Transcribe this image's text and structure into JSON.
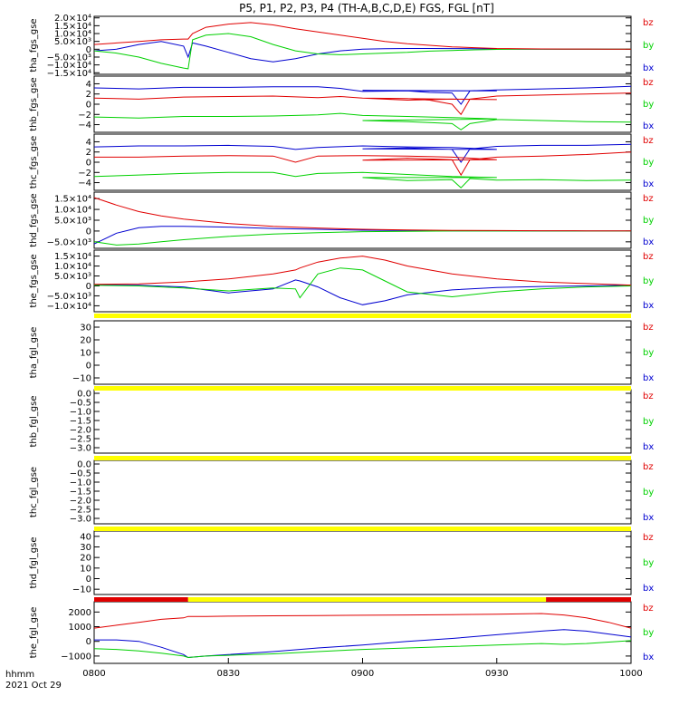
{
  "title": "P5, P1, P2, P3, P4 (TH-A,B,C,D,E) FGS, FGL [nT]",
  "footer": {
    "time_label": "hhmm",
    "date_label": "2021 Oct 29"
  },
  "colors": {
    "bz": "#e00000",
    "by": "#00d000",
    "bx": "#0000d0",
    "flag_yellow": "#ffff00",
    "flag_red": "#e00000"
  },
  "chart_data": [
    {
      "type": "line",
      "ylabel": "tha_fgs_gse",
      "yticks": [
        "2.0×10⁴",
        "1.5×10⁴",
        "1.0×10⁴",
        "5.0×10³",
        "0",
        "−5.0×10³",
        "−1.0×10⁴",
        "−1.5×10⁴"
      ],
      "ylim": [
        -16000,
        21000
      ],
      "legend": [
        "bz",
        "by",
        "bx"
      ],
      "x": [
        800,
        805,
        810,
        815,
        820,
        821,
        822,
        825,
        830,
        835,
        840,
        845,
        850,
        855,
        900,
        905,
        910,
        915,
        920,
        925,
        930,
        935,
        940,
        945,
        950,
        955,
        1000
      ],
      "series": [
        {
          "name": "bz",
          "values": [
            3000,
            4000,
            5000,
            6000,
            6500,
            6500,
            10000,
            14000,
            16000,
            17000,
            15500,
            13000,
            11000,
            9000,
            7000,
            5000,
            3500,
            2500,
            1500,
            1000,
            500,
            300,
            200,
            150,
            120,
            100,
            100
          ]
        },
        {
          "name": "by",
          "values": [
            -1000,
            -2500,
            -5000,
            -9000,
            -12000,
            -12500,
            6000,
            9000,
            10000,
            8000,
            3000,
            -1000,
            -3000,
            -3500,
            -3000,
            -2500,
            -2000,
            -1200,
            -800,
            -400,
            -100,
            0,
            0,
            0,
            0,
            0,
            0
          ]
        },
        {
          "name": "bx",
          "values": [
            -1000,
            0,
            3000,
            5000,
            2000,
            -5000,
            4000,
            2000,
            -2000,
            -6000,
            -8000,
            -6000,
            -3000,
            -1000,
            0,
            300,
            500,
            500,
            400,
            300,
            200,
            100,
            50,
            0,
            0,
            0,
            0
          ]
        }
      ]
    },
    {
      "type": "line",
      "ylabel": "thb_fgs_gse",
      "yticks": [
        "4",
        "2",
        "0",
        "−2",
        "−4"
      ],
      "ylim": [
        -5.5,
        5.5
      ],
      "legend": [
        "bz",
        "by",
        "bx"
      ],
      "x": [
        800,
        810,
        820,
        830,
        840,
        850,
        855,
        860,
        870,
        880,
        890,
        900,
        910,
        915,
        920,
        922,
        924,
        930,
        940,
        950,
        1000
      ],
      "series": [
        {
          "name": "bz",
          "values": [
            1.2,
            1.0,
            1.4,
            1.5,
            1.6,
            1.3,
            1.5,
            1.2,
            0.8,
            1.0,
            0.9,
            1.2,
            1.1,
            0.8,
            0.0,
            -2.0,
            1.0,
            1.6,
            1.8,
            2.0,
            2.2
          ]
        },
        {
          "name": "by",
          "values": [
            -2.5,
            -2.7,
            -2.4,
            -2.4,
            -2.3,
            -2.1,
            -1.8,
            -2.2,
            -2.4,
            -2.6,
            -2.9,
            -3.2,
            -3.4,
            -3.6,
            -3.8,
            -5.0,
            -3.8,
            -3.0,
            -3.2,
            -3.4,
            -3.5
          ]
        },
        {
          "name": "bx",
          "values": [
            3.2,
            3.0,
            3.3,
            3.3,
            3.4,
            3.4,
            3.1,
            2.5,
            2.6,
            2.6,
            2.6,
            2.7,
            2.6,
            2.3,
            2.2,
            0.0,
            2.6,
            2.8,
            3.0,
            3.2,
            3.5
          ]
        }
      ]
    },
    {
      "type": "line",
      "ylabel": "thc_fgs_gse",
      "yticks": [
        "4",
        "2",
        "0",
        "−2",
        "−4"
      ],
      "ylim": [
        -5.5,
        5.5
      ],
      "legend": [
        "bz",
        "by",
        "bx"
      ],
      "x": [
        800,
        810,
        820,
        830,
        840,
        845,
        850,
        860,
        870,
        880,
        890,
        900,
        910,
        920,
        922,
        924,
        930,
        940,
        950,
        1000
      ],
      "series": [
        {
          "name": "bz",
          "values": [
            1.0,
            1.0,
            1.2,
            1.3,
            1.2,
            0.0,
            1.2,
            1.3,
            1.2,
            1.0,
            0.5,
            0.4,
            0.8,
            0.5,
            -2.5,
            0.5,
            1.0,
            1.2,
            1.5,
            2.0
          ]
        },
        {
          "name": "by",
          "values": [
            -2.8,
            -2.5,
            -2.2,
            -2.0,
            -2.0,
            -2.8,
            -2.2,
            -2.0,
            -2.4,
            -2.8,
            -3.0,
            -3.0,
            -3.6,
            -3.4,
            -5.0,
            -3.2,
            -3.5,
            -3.4,
            -3.6,
            -3.5
          ]
        },
        {
          "name": "bx",
          "values": [
            3.0,
            3.2,
            3.2,
            3.3,
            3.1,
            2.5,
            2.9,
            3.2,
            3.0,
            2.9,
            2.5,
            2.6,
            2.8,
            2.5,
            0.0,
            2.6,
            3.1,
            3.3,
            3.3,
            3.5
          ]
        }
      ]
    },
    {
      "type": "line",
      "ylabel": "thd_fgs_gse",
      "yticks": [
        "1.5×10⁴",
        "1.0×10⁴",
        "5.0×10³",
        "0",
        "−5.0×10³"
      ],
      "ylim": [
        -8000,
        18000
      ],
      "legend": [
        "bz",
        "by",
        "bx"
      ],
      "x": [
        800,
        805,
        810,
        815,
        820,
        830,
        840,
        850,
        900,
        910,
        920,
        930,
        940,
        950,
        1000
      ],
      "series": [
        {
          "name": "bz",
          "values": [
            15500,
            12000,
            9000,
            7000,
            5500,
            3500,
            2200,
            1400,
            800,
            500,
            300,
            200,
            150,
            100,
            100
          ]
        },
        {
          "name": "by",
          "values": [
            -5000,
            -6500,
            -6000,
            -5000,
            -4000,
            -2500,
            -1400,
            -800,
            -300,
            -100,
            0,
            0,
            0,
            0,
            0
          ]
        },
        {
          "name": "bx",
          "values": [
            -6000,
            -1000,
            1500,
            2200,
            2200,
            1800,
            1200,
            800,
            400,
            200,
            100,
            50,
            0,
            0,
            0
          ]
        }
      ]
    },
    {
      "type": "line",
      "ylabel": "the_fgs_gse",
      "yticks": [
        "1.5×10⁴",
        "1.0×10⁴",
        "5.0×10³",
        "0",
        "−5.0×10³",
        "−1.0×10⁴"
      ],
      "ylim": [
        -13000,
        18000
      ],
      "legend": [
        "bz",
        "by",
        "bx"
      ],
      "x": [
        800,
        810,
        820,
        830,
        840,
        845,
        846,
        850,
        855,
        900,
        905,
        910,
        920,
        930,
        940,
        950,
        1000
      ],
      "series": [
        {
          "name": "bz",
          "values": [
            800,
            1000,
            2000,
            3500,
            6000,
            8000,
            9000,
            12000,
            14000,
            15000,
            13000,
            10000,
            6000,
            3500,
            2000,
            1200,
            400
          ]
        },
        {
          "name": "by",
          "values": [
            300,
            0,
            -1000,
            -2500,
            -1000,
            -1500,
            -6000,
            6000,
            9000,
            8000,
            2500,
            -3000,
            -5500,
            -3000,
            -1500,
            -500,
            0
          ]
        },
        {
          "name": "bx",
          "values": [
            500,
            300,
            -500,
            -3500,
            -1500,
            3000,
            2500,
            -500,
            -6000,
            -9500,
            -7500,
            -4500,
            -2000,
            -800,
            -300,
            0,
            300
          ]
        }
      ]
    },
    {
      "type": "line",
      "ylabel": "tha_fgl_gse",
      "yticks": [
        "30",
        "20",
        "10",
        "0",
        "−10"
      ],
      "ylim": [
        -15,
        35
      ],
      "legend": [
        "bz",
        "by",
        "bx"
      ],
      "series": []
    },
    {
      "type": "line",
      "ylabel": "thb_fgl_gse",
      "yticks": [
        "0.0",
        "−0.5",
        "−1.0",
        "−1.5",
        "−2.0",
        "−2.5",
        "−3.0"
      ],
      "ylim": [
        -3.3,
        0.2
      ],
      "legend": [
        "bz",
        "by",
        "bx"
      ],
      "series": []
    },
    {
      "type": "line",
      "ylabel": "thc_fgl_gse",
      "yticks": [
        "0.0",
        "−0.5",
        "−1.0",
        "−1.5",
        "−2.0",
        "−2.5",
        "−3.0"
      ],
      "ylim": [
        -3.3,
        0.2
      ],
      "legend": [
        "bz",
        "by",
        "bx"
      ],
      "series": []
    },
    {
      "type": "line",
      "ylabel": "thd_fgl_gse",
      "yticks": [
        "40",
        "30",
        "20",
        "10",
        "0",
        "−10"
      ],
      "ylim": [
        -15,
        45
      ],
      "legend": [
        "bz",
        "by",
        "bx"
      ],
      "series": []
    },
    {
      "type": "line",
      "ylabel": "the_fgl_gse",
      "yticks": [
        "2000",
        "1000",
        "0",
        "−1000"
      ],
      "ylim": [
        -1500,
        2700
      ],
      "legend": [
        "bz",
        "by",
        "bx"
      ],
      "x": [
        800,
        805,
        810,
        815,
        820,
        821,
        825,
        830,
        840,
        850,
        900,
        910,
        920,
        930,
        940,
        945,
        950,
        955,
        1000
      ],
      "series": [
        {
          "name": "bz",
          "values": [
            900,
            1100,
            1300,
            1500,
            1600,
            1700,
            1700,
            1720,
            1740,
            1760,
            1780,
            1800,
            1820,
            1850,
            1900,
            1800,
            1600,
            1300,
            900
          ]
        },
        {
          "name": "by",
          "values": [
            -500,
            -550,
            -650,
            -800,
            -1000,
            -1100,
            -1000,
            -950,
            -850,
            -700,
            -550,
            -450,
            -350,
            -250,
            -150,
            -200,
            -150,
            -50,
            50
          ]
        },
        {
          "name": "bx",
          "values": [
            100,
            100,
            0,
            -400,
            -900,
            -1100,
            -1000,
            -900,
            -700,
            -450,
            -250,
            0,
            200,
            450,
            700,
            800,
            700,
            500,
            300
          ]
        }
      ]
    }
  ],
  "x_axis": {
    "ticks": [
      "0800",
      "0830",
      "0900",
      "0930",
      "1000"
    ],
    "xlim": [
      0,
      120
    ]
  },
  "flags": [
    {
      "below_panel": 4,
      "segments": [
        {
          "from": 0,
          "to": 120,
          "color": "yellow"
        }
      ]
    },
    {
      "below_panel": 5,
      "segments": [
        {
          "from": 0,
          "to": 120,
          "color": "yellow"
        }
      ]
    },
    {
      "below_panel": 6,
      "segments": [
        {
          "from": 0,
          "to": 120,
          "color": "yellow"
        }
      ]
    },
    {
      "below_panel": 7,
      "segments": [
        {
          "from": 0,
          "to": 120,
          "color": "yellow"
        }
      ]
    },
    {
      "below_panel": 8,
      "segments": [
        {
          "from": 0,
          "to": 21,
          "color": "red"
        },
        {
          "from": 21,
          "to": 101,
          "color": "yellow"
        },
        {
          "from": 101,
          "to": 120,
          "color": "red"
        }
      ]
    }
  ]
}
